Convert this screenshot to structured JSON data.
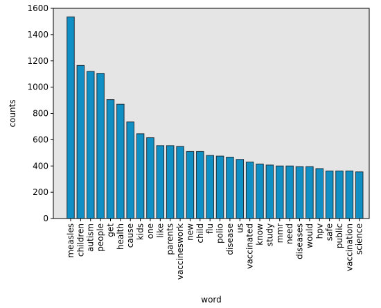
{
  "chart_data": {
    "type": "bar",
    "xlabel": "word",
    "ylabel": "counts",
    "ylim": [
      0,
      1600
    ],
    "yticks": [
      0,
      200,
      400,
      600,
      800,
      1000,
      1200,
      1400,
      1600
    ],
    "grid": false,
    "categories": [
      "measles",
      "children",
      "autism",
      "people",
      "get",
      "health",
      "cause",
      "kids",
      "one",
      "like",
      "parents",
      "vaccineswork",
      "new",
      "child",
      "flu",
      "polio",
      "disease",
      "us",
      "vaccinated",
      "know",
      "study",
      "mmr",
      "need",
      "diseases",
      "would",
      "hpv",
      "safe",
      "public",
      "vaccination",
      "science"
    ],
    "values": [
      1535,
      1165,
      1120,
      1105,
      905,
      870,
      735,
      645,
      615,
      555,
      555,
      548,
      510,
      510,
      480,
      475,
      467,
      450,
      430,
      415,
      407,
      400,
      400,
      395,
      395,
      380,
      362,
      362,
      362,
      355
    ],
    "colors": {
      "bar_fill": "#0f8fc4",
      "bar_edge": "#1f2f3a",
      "plot_background": "#e5e5e5",
      "axis": "#000000"
    }
  }
}
